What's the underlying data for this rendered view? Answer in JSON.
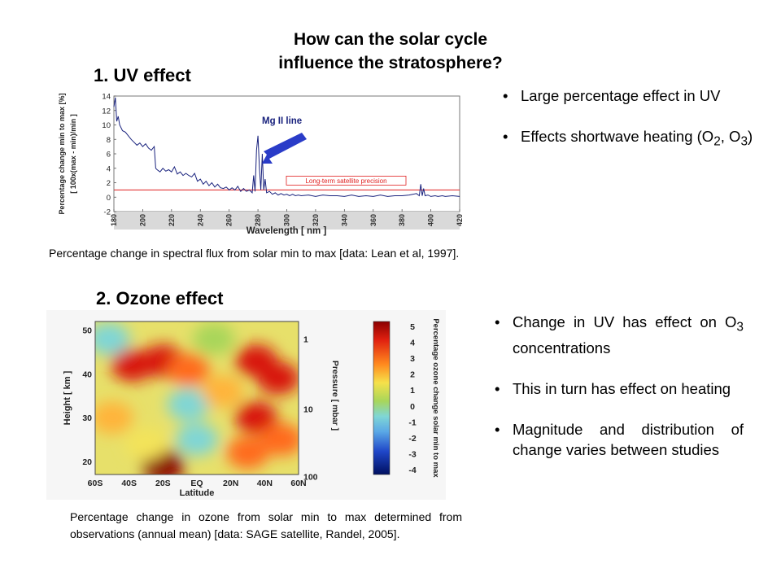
{
  "title_line1": "How can the solar cycle",
  "title_line2": "influence the stratosphere?",
  "section1": {
    "heading": "1. UV effect"
  },
  "section2": {
    "heading": "2. Ozone effect"
  },
  "bullets_top": [
    {
      "text": "Large percentage effect in UV"
    },
    {
      "pre": "Effects shortwave heating (O",
      "sub1": "2",
      "mid": ", O",
      "sub2": "3",
      "post": ")"
    }
  ],
  "bullets_bottom": [
    {
      "pre": "Change in UV has effect on O",
      "sub": "3",
      "post": " concentrations"
    },
    {
      "text": "This in turn has effect on heating"
    },
    {
      "text": "Magnitude and distribution of change varies between studies"
    }
  ],
  "caption1": "Percentage change in spectral flux from solar min to max [data: Lean et al, 1997].",
  "caption2": "Percentage change in ozone from solar min to max determined from observations (annual mean) [data: SAGE satellite, Randel, 2005].",
  "chart_data": [
    {
      "type": "line",
      "xlabel": "Wavelength [ nm ]",
      "ylabel_line1": "Percentage change min to max [%]",
      "ylabel_line2": "[ 100x(max - min)/min ]",
      "xticks": [
        "180",
        "200",
        "220",
        "240",
        "260",
        "280",
        "300",
        "320",
        "340",
        "360",
        "380",
        "400",
        "420"
      ],
      "yticks": [
        "14",
        "12",
        "10",
        "8",
        "6",
        "4",
        "2",
        "0",
        "-2"
      ],
      "xlim": [
        180,
        420
      ],
      "ylim": [
        -2,
        14
      ],
      "annotation_mg": "Mg II line",
      "annotation_precision": "Long-term satellite precision",
      "precision_level": 1,
      "series": [
        {
          "x": [
            180,
            181,
            182,
            183,
            184,
            186,
            188,
            190,
            192,
            194,
            196,
            198,
            200,
            202,
            204,
            206,
            208,
            209,
            210,
            212,
            214,
            216,
            218,
            220,
            222,
            224,
            226,
            228,
            230,
            232,
            234,
            236,
            238,
            240,
            242,
            244,
            246,
            248,
            250,
            252,
            254,
            256,
            258,
            260,
            262,
            264,
            266,
            268,
            270,
            272,
            274,
            276,
            277,
            278,
            279,
            280,
            281,
            282,
            283,
            284,
            285,
            286,
            288,
            290,
            292,
            294,
            296,
            298,
            300,
            302,
            304,
            306,
            308,
            310,
            315,
            320,
            325,
            330,
            335,
            340,
            345,
            350,
            355,
            360,
            365,
            370,
            375,
            380,
            385,
            390,
            392,
            393,
            394,
            395,
            396,
            398,
            400,
            403,
            405,
            408,
            410,
            415,
            420
          ],
          "y": [
            12.5,
            13.8,
            10.5,
            11.2,
            10.0,
            9.2,
            9.0,
            8.5,
            8.0,
            7.6,
            7.2,
            7.5,
            7.0,
            7.4,
            6.8,
            6.5,
            7.0,
            4.0,
            3.8,
            3.5,
            4.0,
            3.6,
            3.8,
            3.5,
            4.2,
            3.2,
            3.5,
            3.0,
            3.3,
            3.0,
            2.8,
            3.3,
            2.2,
            2.5,
            1.8,
            2.2,
            1.6,
            2.0,
            1.4,
            1.8,
            1.3,
            1.2,
            1.4,
            1.0,
            1.3,
            1.0,
            1.5,
            0.8,
            1.2,
            0.8,
            1.0,
            0.6,
            3.0,
            0.8,
            6.5,
            8.5,
            4.0,
            1.0,
            6.0,
            1.0,
            2.5,
            0.6,
            0.8,
            0.4,
            0.6,
            0.3,
            0.5,
            0.3,
            0.4,
            0.2,
            0.4,
            0.2,
            0.3,
            0.2,
            0.3,
            0.1,
            0.3,
            0.2,
            0.2,
            0.1,
            0.3,
            0.1,
            0.2,
            0.1,
            0.3,
            0.1,
            0.2,
            0.2,
            0.3,
            0.5,
            0.2,
            1.8,
            0.2,
            1.2,
            0.2,
            0.3,
            0.1,
            0.2,
            0.1,
            0.2,
            0.1,
            0.2,
            0.1
          ]
        }
      ]
    },
    {
      "type": "heatmap",
      "xlabel": "Latitude",
      "ylabel_left": "Height [ km ]",
      "ylabel_right": "Pressure [ mbar ]",
      "xticks": [
        "60S",
        "40S",
        "20S",
        "EQ",
        "20N",
        "40N",
        "60N"
      ],
      "yticks_left": [
        "50",
        "40",
        "30",
        "20"
      ],
      "yticks_right": [
        "1",
        "10",
        "100"
      ],
      "colorbar_label": "Percentage ozone change solar min to max",
      "colorbar_ticks": [
        "5",
        "4",
        "3",
        "2",
        "1",
        "0",
        "-1",
        "-2",
        "-3",
        "-4"
      ],
      "clim": [
        -4,
        5
      ],
      "blobs": [
        {
          "lat": -38,
          "z": 42,
          "v": 4.2
        },
        {
          "lat": -20,
          "z": 43,
          "v": 4.0
        },
        {
          "lat": -5,
          "z": 41,
          "v": 3.2
        },
        {
          "lat": 35,
          "z": 43,
          "v": 4.0
        },
        {
          "lat": 48,
          "z": 39,
          "v": 4.3
        },
        {
          "lat": 35,
          "z": 30,
          "v": 3.5
        },
        {
          "lat": 30,
          "z": 22,
          "v": 3.4
        },
        {
          "lat": 50,
          "z": 25,
          "v": 3.0
        },
        {
          "lat": -20,
          "z": 19,
          "v": 4.5
        },
        {
          "lat": -50,
          "z": 30,
          "v": 2.0
        },
        {
          "lat": -5,
          "z": 33,
          "v": -0.7
        },
        {
          "lat": 0,
          "z": 25,
          "v": -1.0
        },
        {
          "lat": -52,
          "z": 48,
          "v": -0.6
        },
        {
          "lat": 10,
          "z": 48,
          "v": 0.2
        },
        {
          "lat": -30,
          "z": 24,
          "v": 1.0
        },
        {
          "lat": 15,
          "z": 36,
          "v": 2.0
        }
      ]
    }
  ]
}
